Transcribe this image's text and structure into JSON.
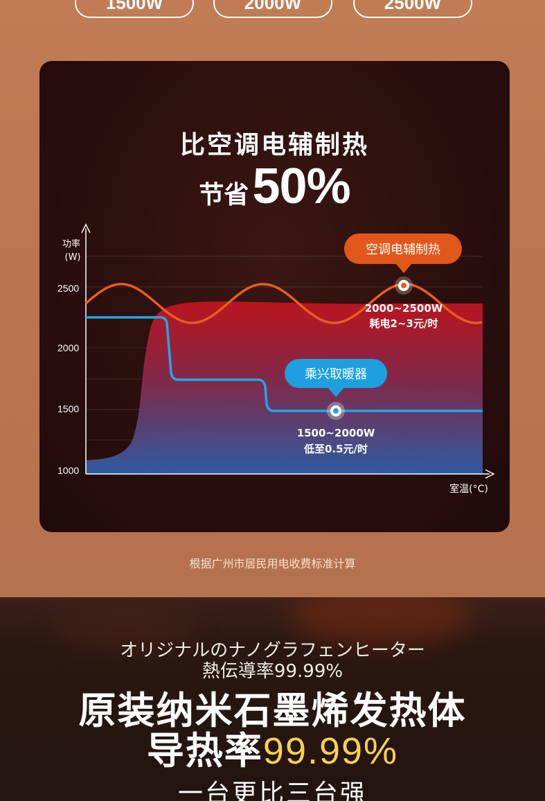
{
  "pills": [
    "1500W",
    "2000W",
    "2500W"
  ],
  "card": {
    "title": "比空调电辅制热",
    "subtitle_prefix": "节省",
    "subtitle_value": "50%"
  },
  "chart_data": {
    "type": "line",
    "ylabel": "功率\n(W)",
    "ylabel_top": "功率",
    "ylabel_unit": "(W)",
    "xlabel": "室温(°C)",
    "yticks": [
      2500,
      2000,
      1500,
      1000
    ],
    "ylim": [
      1000,
      2750
    ],
    "series": [
      {
        "name": "空调电辅制热",
        "label": "空调电辅制热",
        "color": "#e85d1c",
        "range_text": "2000~2500W",
        "cost_text": "耗电2~3元/时"
      },
      {
        "name": "乘兴取暖器",
        "label": "乘兴取暖器",
        "color": "#1ea7e8",
        "range_text": "1500~2000W",
        "cost_text": "低至0.5元/时"
      }
    ]
  },
  "footnote": "根据广州市居民用电收费标准计算",
  "bottom": {
    "jp_line1": "オリジナルのナノグラフェンヒーター",
    "jp_line2": "熱伝導率99.99%",
    "cn_line1": "原装纳米石墨烯发热体",
    "cn_line2_prefix": "导热率",
    "cn_line2_value": "99.99%",
    "cn_line3": "一台更比三台强"
  }
}
